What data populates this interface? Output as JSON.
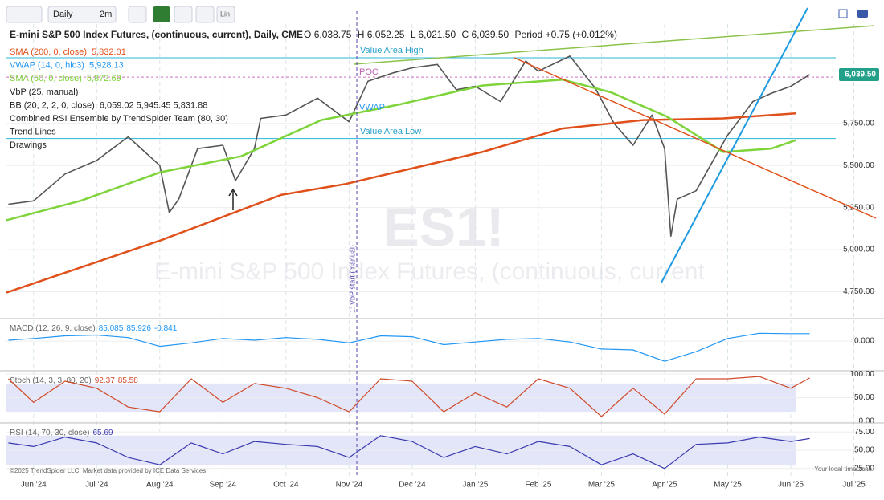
{
  "toolbar": {
    "interval": "Daily",
    "range": "2m",
    "scale": "Lin"
  },
  "header": {
    "title": "E-mini S&P 500 Index Futures, (continuous, current), Daily, CME",
    "open_label": "O",
    "open": "6,038.75",
    "high_label": "H",
    "high": "6,052.25",
    "low_label": "L",
    "low": "6,021.50",
    "close_label": "C",
    "close": "6,039.50",
    "period_label": "Period",
    "period": "+0.75 (+0.012%)"
  },
  "indicators": [
    {
      "name": "SMA (200, 0, close)",
      "value": "5,832.01",
      "color": "#e0501a"
    },
    {
      "name": "VWAP (14, 0, hlc3)",
      "value": "5,928.13",
      "color": "#2196f3"
    },
    {
      "name": "SMA (50, 0, close)",
      "value": "5,872.69",
      "color": "#7ed43a"
    },
    {
      "name": "VbP (25, manual)",
      "color": "#222222"
    },
    {
      "name": "BB (20, 2, 2, 0, close)",
      "value": "6,059.02 5,945.45 5,831.88",
      "color": "#222222"
    },
    {
      "name": "Combined RSI Ensemble by TrendSpider Team (80, 30)",
      "color": "#222222"
    },
    {
      "name": "Trend Lines",
      "color": "#222222"
    },
    {
      "name": "Drawings",
      "color": "#222222"
    }
  ],
  "annotations": {
    "value_area_high": "Value Area High",
    "value_area_low": "Value Area Low",
    "poc": "POC",
    "vwap": "VWAP",
    "vbp_start": "1: VbP start (manual)"
  },
  "watermark": {
    "symbol": "ES1!",
    "name": "E-mini S&P 500 Index Futures, (continuous, current"
  },
  "footer": {
    "copyright": "©2025 TrendSpider LLC. Market data provided by ICE Data Services",
    "timezone": "Your local time zone"
  },
  "chart_data": [
    {
      "type": "line",
      "xlim": [
        -0.43,
        13.35
      ],
      "xticks": [
        {
          "value": 0,
          "label": "Jun '24"
        },
        {
          "value": 1,
          "label": "Jul '24"
        },
        {
          "value": 2,
          "label": "Aug '24"
        },
        {
          "value": 3,
          "label": "Sep '24"
        },
        {
          "value": 4,
          "label": "Oct '24"
        },
        {
          "value": 5,
          "label": "Nov '24"
        },
        {
          "value": 6,
          "label": "Dec '24"
        },
        {
          "value": 7,
          "label": "Jan '25"
        },
        {
          "value": 8,
          "label": "Feb '25"
        },
        {
          "value": 9,
          "label": "Mar '25"
        },
        {
          "value": 10,
          "label": "Apr '25"
        },
        {
          "value": 11,
          "label": "May '25"
        },
        {
          "value": 12,
          "label": "Jun '25"
        },
        {
          "value": 13,
          "label": "Jul '25"
        }
      ],
      "ylim": [
        4600,
        6340
      ],
      "yticks": [
        {
          "value": 5750,
          "label": "5,750.00"
        },
        {
          "value": 5500,
          "label": "5,500.00"
        },
        {
          "value": 5250,
          "label": "5,250.00"
        },
        {
          "value": 5000,
          "label": "5,000.00"
        },
        {
          "value": 4750,
          "label": "4,750.00"
        }
      ],
      "grid": true,
      "last_price": {
        "value": 6039.5,
        "label": "6,039.50",
        "color": "#22a08a"
      },
      "levels": [
        {
          "value": 6140,
          "color": "#29b6d6"
        },
        {
          "value": 5660,
          "color": "#29b6d6"
        },
        {
          "value": 6025,
          "color": "#d070c0"
        }
      ],
      "series": [
        {
          "color": "#555555",
          "width": 1.6,
          "x": [
            -0.4,
            0,
            0.5,
            1,
            1.5,
            2,
            2.15,
            2.3,
            2.6,
            3,
            3.2,
            3.5,
            3.6,
            4,
            4.5,
            5,
            5.3,
            5.7,
            6,
            6.4,
            6.7,
            7,
            7.4,
            7.8,
            8,
            8.5,
            8.9,
            9.2,
            9.5,
            9.8,
            10,
            10.1,
            10.2,
            10.5,
            10.8,
            11,
            11.4,
            11.7,
            12,
            12.3
          ],
          "values": [
            5270,
            5290,
            5450,
            5530,
            5670,
            5500,
            5220,
            5300,
            5600,
            5620,
            5410,
            5600,
            5780,
            5800,
            5900,
            5760,
            6000,
            6050,
            6080,
            6100,
            5950,
            5970,
            5880,
            6120,
            6060,
            6150,
            5960,
            5750,
            5620,
            5800,
            5600,
            5080,
            5300,
            5350,
            5550,
            5680,
            5880,
            5930,
            5970,
            6040
          ]
        },
        {
          "color": "#e0501a",
          "width": 2.5,
          "x": [
            -0.43,
            2.01,
            3.92,
            4.94,
            7.11,
            8.38,
            9.66,
            10.93,
            12.08
          ],
          "values": [
            4745,
            5055,
            5325,
            5390,
            5580,
            5720,
            5770,
            5780,
            5810
          ]
        },
        {
          "color": "#7ed43a",
          "width": 2.5,
          "x": [
            -0.43,
            0.74,
            2.01,
            3.29,
            4.56,
            5.83,
            7.11,
            8.38,
            9.15,
            10.04,
            10.93,
            11.69,
            12.08
          ],
          "values": [
            5175,
            5290,
            5460,
            5555,
            5770,
            5865,
            5975,
            6010,
            5935,
            5790,
            5580,
            5600,
            5650
          ]
        }
      ]
    },
    {
      "type": "line",
      "title": "MACD (12, 26, 9, close)",
      "value_texts": [
        "85.085",
        "85.926",
        "-0.841"
      ],
      "ylim": [
        -320,
        230
      ],
      "yticks": [
        {
          "value": 0,
          "label": "0.000"
        }
      ],
      "series": [
        {
          "color": "#2196f3",
          "width": 1.2,
          "x": [
            -0.4,
            0,
            0.5,
            1,
            1.5,
            2,
            2.5,
            3,
            3.5,
            4,
            4.5,
            5,
            5.5,
            6,
            6.5,
            7,
            7.5,
            8,
            8.5,
            9,
            9.5,
            10,
            10.5,
            11,
            11.5,
            12,
            12.3
          ],
          "values": [
            10,
            30,
            60,
            70,
            40,
            -60,
            -20,
            30,
            10,
            40,
            20,
            -20,
            60,
            50,
            -40,
            -10,
            20,
            30,
            -10,
            -90,
            -100,
            -230,
            -120,
            30,
            90,
            85,
            85
          ]
        }
      ]
    },
    {
      "type": "line",
      "title": "Stoch (14, 3, 3, 80, 20)",
      "value_texts": [
        "92.37",
        "85.58"
      ],
      "ylim": [
        -2,
        102
      ],
      "band": [
        20,
        80
      ],
      "yticks": [
        {
          "value": 100,
          "label": "100.00"
        },
        {
          "value": 50,
          "label": "50.00"
        },
        {
          "value": 0,
          "label": "0.00"
        }
      ],
      "series": [
        {
          "color": "#d04a2a",
          "width": 1.2,
          "x": [
            -0.4,
            0,
            0.5,
            1,
            1.5,
            2,
            2.5,
            3,
            3.5,
            4,
            4.5,
            5,
            5.5,
            6,
            6.5,
            7,
            7.5,
            8,
            8.5,
            9,
            9.5,
            10,
            10.5,
            11,
            11.5,
            12,
            12.3
          ],
          "values": [
            90,
            40,
            85,
            70,
            30,
            20,
            90,
            40,
            80,
            70,
            50,
            20,
            90,
            85,
            20,
            60,
            30,
            90,
            70,
            10,
            70,
            15,
            90,
            90,
            95,
            70,
            92
          ]
        }
      ]
    },
    {
      "type": "line",
      "title": "RSI (14, 70, 30, close)",
      "value_texts": [
        "65.69"
      ],
      "ylim": [
        16,
        84
      ],
      "band": [
        30,
        70
      ],
      "yticks": [
        {
          "value": 75,
          "label": "75.00"
        },
        {
          "value": 50,
          "label": "50.00"
        },
        {
          "value": 25,
          "label": "25.00"
        }
      ],
      "series": [
        {
          "color": "#3a3ab0",
          "width": 1.2,
          "x": [
            -0.4,
            0,
            0.5,
            1,
            1.5,
            2,
            2.5,
            3,
            3.5,
            4,
            4.5,
            5,
            5.5,
            6,
            6.5,
            7,
            7.5,
            8,
            8.5,
            9,
            9.5,
            10,
            10.5,
            11,
            11.5,
            12,
            12.3
          ],
          "values": [
            60,
            55,
            68,
            60,
            40,
            30,
            60,
            45,
            62,
            58,
            55,
            40,
            70,
            62,
            40,
            55,
            45,
            62,
            55,
            30,
            45,
            25,
            58,
            60,
            68,
            62,
            66
          ]
        }
      ]
    }
  ]
}
